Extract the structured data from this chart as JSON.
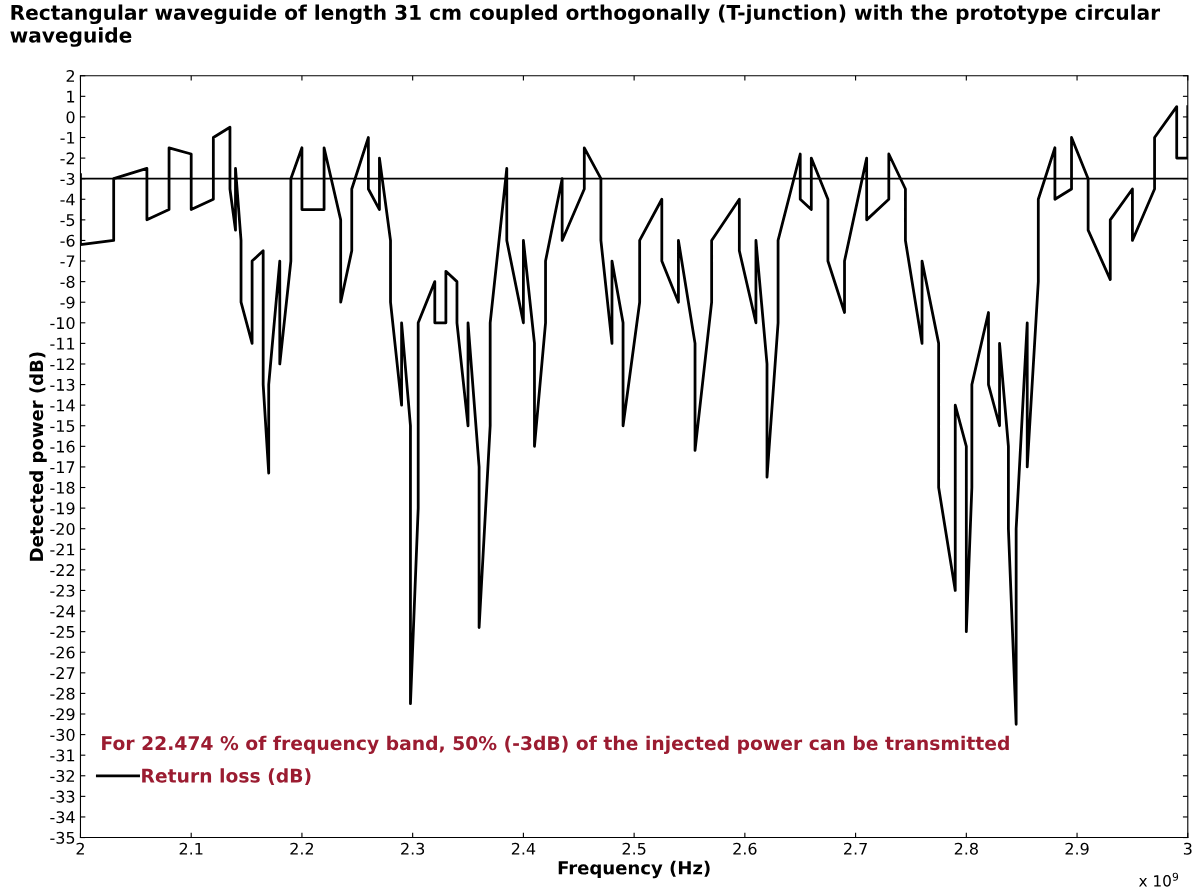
{
  "chart_data": {
    "type": "line",
    "title": "Rectangular waveguide of length 31 cm coupled orthogonally (T-junction) with the prototype circular waveguide",
    "xlabel": "Frequency (Hz)",
    "ylabel": "Detected power (dB)",
    "x": [
      2.0,
      2.0,
      2.03,
      2.03,
      2.06,
      2.06,
      2.08,
      2.08,
      2.1,
      2.1,
      2.12,
      2.12,
      2.135,
      2.135,
      2.14,
      2.14,
      2.145,
      2.145,
      2.155,
      2.155,
      2.165,
      2.165,
      2.17,
      2.17,
      2.18,
      2.18,
      2.19,
      2.19,
      2.2,
      2.2,
      2.22,
      2.22,
      2.235,
      2.235,
      2.245,
      2.245,
      2.26,
      2.26,
      2.27,
      2.27,
      2.28,
      2.28,
      2.29,
      2.29,
      2.298,
      2.298,
      2.305,
      2.305,
      2.32,
      2.32,
      2.33,
      2.33,
      2.34,
      2.34,
      2.35,
      2.35,
      2.36,
      2.36,
      2.37,
      2.37,
      2.385,
      2.385,
      2.4,
      2.4,
      2.41,
      2.41,
      2.42,
      2.42,
      2.435,
      2.435,
      2.455,
      2.455,
      2.47,
      2.47,
      2.48,
      2.48,
      2.49,
      2.49,
      2.505,
      2.505,
      2.525,
      2.525,
      2.54,
      2.54,
      2.555,
      2.555,
      2.57,
      2.57,
      2.595,
      2.595,
      2.61,
      2.61,
      2.62,
      2.62,
      2.63,
      2.63,
      2.65,
      2.65,
      2.66,
      2.66,
      2.675,
      2.675,
      2.69,
      2.69,
      2.71,
      2.71,
      2.73,
      2.73,
      2.745,
      2.745,
      2.76,
      2.76,
      2.775,
      2.775,
      2.79,
      2.79,
      2.8,
      2.8,
      2.805,
      2.805,
      2.82,
      2.82,
      2.83,
      2.83,
      2.838,
      2.838,
      2.845,
      2.845,
      2.855,
      2.855,
      2.865,
      2.865,
      2.88,
      2.88,
      2.895,
      2.895,
      2.91,
      2.91,
      2.93,
      2.93,
      2.95,
      2.95,
      2.97,
      2.97,
      2.99,
      2.99,
      3.0,
      3.0
    ],
    "series": [
      {
        "name": "Return loss (dB)",
        "color": "#000000",
        "values": [
          -2.8,
          -6.2,
          -6,
          -3,
          -2.5,
          -5,
          -4.5,
          -1.5,
          -1.8,
          -4.5,
          -4,
          -1,
          -0.5,
          -3.5,
          -5.5,
          -2.5,
          -6,
          -9,
          -11,
          -7,
          -6.5,
          -13,
          -17.3,
          -13,
          -7,
          -12,
          -7,
          -3,
          -1.5,
          -4.5,
          -4.5,
          -1.5,
          -5,
          -9,
          -6.5,
          -3.5,
          -1,
          -3.5,
          -4.5,
          -2,
          -6,
          -9,
          -14,
          -10,
          -15,
          -28.5,
          -19,
          -10,
          -8,
          -10,
          -10,
          -7.5,
          -8,
          -10,
          -15,
          -10,
          -17,
          -24.8,
          -15,
          -10,
          -2.5,
          -6,
          -10,
          -6,
          -11,
          -16,
          -10,
          -7,
          -3,
          -6,
          -3.5,
          -1.5,
          -3,
          -6,
          -11,
          -7,
          -10,
          -15,
          -9,
          -6,
          -4,
          -7,
          -9,
          -6,
          -11,
          -16.2,
          -9,
          -6,
          -4,
          -6.5,
          -10,
          -6,
          -12,
          -17.5,
          -10,
          -6,
          -1.8,
          -4,
          -4.5,
          -2,
          -4,
          -7,
          -9.5,
          -7,
          -2,
          -5,
          -4,
          -1.8,
          -3.5,
          -6,
          -11,
          -7,
          -11,
          -18,
          -23,
          -14,
          -16,
          -25,
          -18,
          -13,
          -9.5,
          -13,
          -15,
          -11,
          -16,
          -20,
          -29.5,
          -20,
          -10,
          -17,
          -8,
          -4,
          -1.5,
          -4,
          -3.5,
          -1,
          -3,
          -5.5,
          -7.9,
          -5,
          -3.5,
          -6,
          -3.5,
          -1,
          0.5,
          -2,
          -2,
          0.5
        ]
      }
    ],
    "xlim": [
      2,
      3
    ],
    "xticks": [
      2,
      2.1,
      2.2,
      2.3,
      2.4,
      2.5,
      2.6,
      2.7,
      2.8,
      2.9,
      3
    ],
    "ylim": [
      -35,
      2
    ],
    "yticks": [
      -35,
      -34,
      -33,
      -32,
      -31,
      -30,
      -29,
      -28,
      -27,
      -26,
      -25,
      -24,
      -23,
      -22,
      -21,
      -20,
      -19,
      -18,
      -17,
      -16,
      -15,
      -14,
      -13,
      -12,
      -11,
      -10,
      -9,
      -8,
      -7,
      -6,
      -5,
      -4,
      -3,
      -2,
      -1,
      0,
      1,
      2
    ],
    "ref_lines": [
      {
        "axis": "y",
        "value": -3,
        "color": "#000000"
      }
    ],
    "annotations": [
      "For 22.474 % of frequency band, 50% (-3dB) of the injected power can be transmitted",
      "x 10$^{9}$"
    ],
    "legend": "bottom left",
    "grid": false
  }
}
